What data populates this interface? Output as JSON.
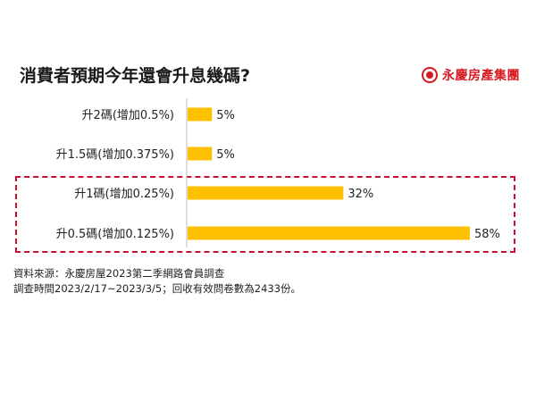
{
  "header": {
    "title": "消費者預期今年還會升息幾碼?",
    "brand": "永慶房產集團"
  },
  "chart_data": {
    "type": "bar",
    "orientation": "horizontal",
    "title": "消費者預期今年還會升息幾碼?",
    "categories": [
      "升2碼(增加0.5%)",
      "升1.5碼(增加0.375%)",
      "升1碼(增加0.25%)",
      "升0.5碼(增加0.125%)"
    ],
    "values": [
      5,
      5,
      32,
      58
    ],
    "data_labels": [
      "5%",
      "5%",
      "32%",
      "58%"
    ],
    "xlim": [
      0,
      58
    ],
    "unit": "%",
    "bar_color": "#FFC000",
    "highlight_color": "#C8102E",
    "highlighted_categories": [
      "升1碼(增加0.25%)",
      "升0.5碼(增加0.125%)"
    ],
    "grid": false
  },
  "footer": {
    "source_line1": "資料來源：永慶房屋2023第二季網路會員調查",
    "source_line2": "調查時間2023/2/17~2023/3/5；回收有效問卷數為2433份。"
  }
}
